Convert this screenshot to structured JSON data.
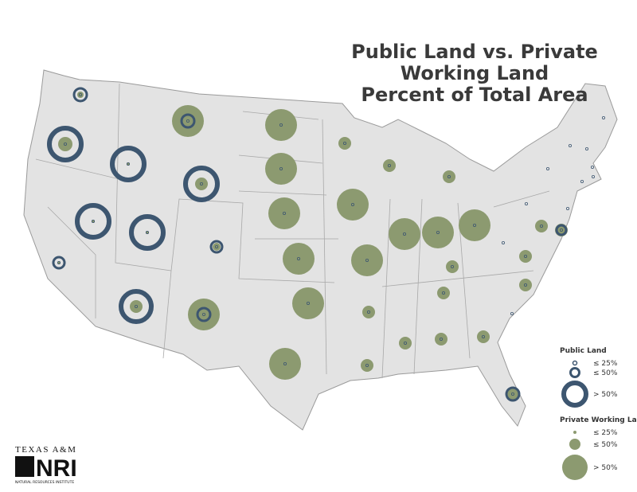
{
  "title": {
    "lines": [
      "Public Land vs. Private",
      "Working Land",
      "Percent of Total Area"
    ]
  },
  "legend": {
    "public_land": {
      "heading": "Public Land",
      "items": [
        "≤ 25%",
        "≤ 50%",
        "> 50%"
      ]
    },
    "private_land": {
      "heading": "Private Working Land",
      "items": [
        "≤ 25%",
        "≤ 50%",
        "> 50%"
      ]
    }
  },
  "logo": {
    "top": "TEXAS A&M",
    "mark": "NRI",
    "bottom": "NATURAL RESOURCES INSTITUTE"
  }
}
